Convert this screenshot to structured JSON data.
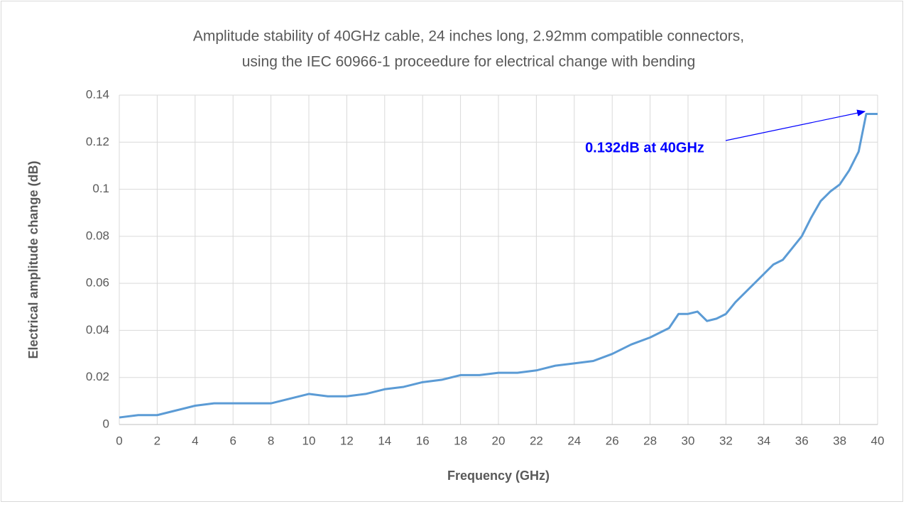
{
  "chart_data": {
    "type": "line",
    "title": [
      "Amplitude stability of 40GHz cable, 24 inches long, 2.92mm compatible connectors,",
      "using the IEC 60966-1 proceedure for electrical change with bending"
    ],
    "xlabel": "Frequency (GHz)",
    "ylabel": "Electrical amplitude change (dB)",
    "annotation": "0.132dB at 40GHz",
    "series": [
      {
        "color": "#5b9bd5",
        "x": [
          0,
          1,
          2,
          3,
          4,
          5,
          6,
          7,
          8,
          9,
          10,
          11,
          12,
          13,
          14,
          15,
          16,
          17,
          18,
          19,
          20,
          21,
          22,
          23,
          24,
          25,
          26,
          27,
          28,
          29,
          29.5,
          30,
          30.5,
          31,
          31.5,
          32,
          32.5,
          33,
          34,
          34.5,
          35,
          35.5,
          36,
          36.5,
          37,
          37.5,
          38,
          38.5,
          39,
          39.4,
          40
        ],
        "values": [
          0.003,
          0.004,
          0.004,
          0.006,
          0.008,
          0.009,
          0.009,
          0.009,
          0.009,
          0.011,
          0.013,
          0.012,
          0.012,
          0.013,
          0.015,
          0.016,
          0.018,
          0.019,
          0.021,
          0.021,
          0.022,
          0.022,
          0.023,
          0.025,
          0.026,
          0.027,
          0.03,
          0.034,
          0.037,
          0.041,
          0.047,
          0.047,
          0.048,
          0.044,
          0.045,
          0.047,
          0.052,
          0.056,
          0.064,
          0.068,
          0.07,
          0.075,
          0.08,
          0.088,
          0.095,
          0.099,
          0.102,
          0.108,
          0.116,
          0.132,
          0.132
        ]
      }
    ],
    "xlim": [
      0,
      40
    ],
    "xticks": [
      0,
      2,
      4,
      6,
      8,
      10,
      12,
      14,
      16,
      18,
      20,
      22,
      24,
      26,
      28,
      30,
      32,
      34,
      36,
      38,
      40
    ],
    "ylim": [
      0,
      0.14
    ],
    "yticks": [
      0,
      0.02,
      0.04,
      0.06,
      0.08,
      0.1,
      0.12,
      0.14
    ],
    "grid": true
  }
}
